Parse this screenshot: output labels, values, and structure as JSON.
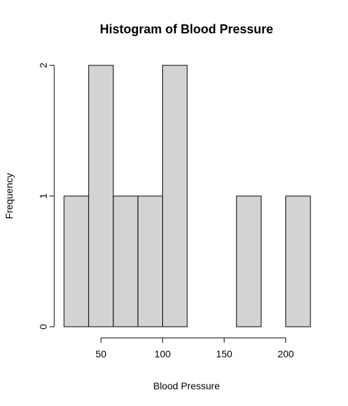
{
  "chart_data": {
    "type": "bar",
    "title": "Histogram of Blood Pressure",
    "xlabel": "Blood Pressure",
    "ylabel": "Frequency",
    "bins": [
      {
        "start": 20,
        "end": 40,
        "count": 1
      },
      {
        "start": 40,
        "end": 60,
        "count": 2
      },
      {
        "start": 60,
        "end": 80,
        "count": 1
      },
      {
        "start": 80,
        "end": 100,
        "count": 1
      },
      {
        "start": 100,
        "end": 120,
        "count": 2
      },
      {
        "start": 120,
        "end": 140,
        "count": 0
      },
      {
        "start": 140,
        "end": 160,
        "count": 0
      },
      {
        "start": 160,
        "end": 180,
        "count": 1
      },
      {
        "start": 180,
        "end": 200,
        "count": 0
      },
      {
        "start": 200,
        "end": 220,
        "count": 1
      }
    ],
    "xlim": [
      20,
      220
    ],
    "ylim": [
      0,
      2
    ],
    "x_ticks": [
      50,
      100,
      150,
      200
    ],
    "y_ticks": [
      0,
      1,
      2
    ],
    "bar_color": "#d3d3d3",
    "grid": false
  }
}
